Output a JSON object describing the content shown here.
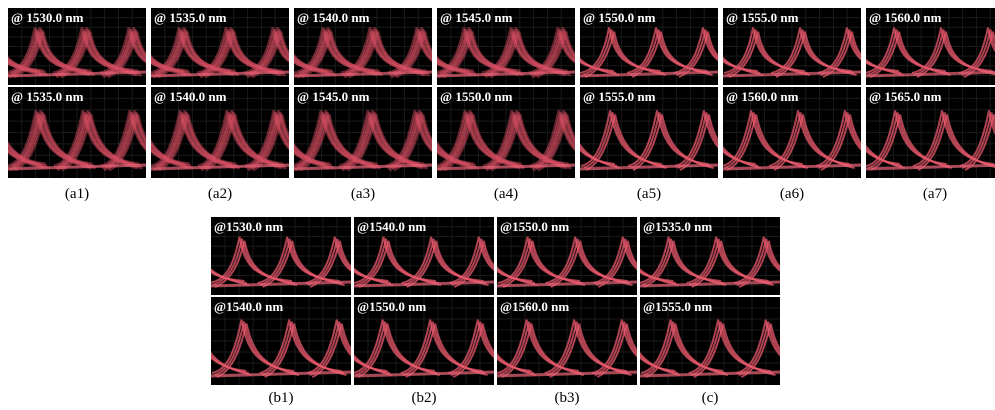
{
  "top_row": [
    {
      "upper": "@ 1530.0 nm",
      "lower": "@ 1535.0 nm",
      "caption": "(a1)"
    },
    {
      "upper": "@ 1535.0 nm",
      "lower": "@ 1540.0 nm",
      "caption": "(a2)"
    },
    {
      "upper": "@ 1540.0 nm",
      "lower": "@ 1545.0 nm",
      "caption": "(a3)"
    },
    {
      "upper": "@ 1545.0 nm",
      "lower": "@ 1550.0 nm",
      "caption": "(a4)"
    },
    {
      "upper": "@ 1550.0 nm",
      "lower": "@ 1555.0 nm",
      "caption": "(a5)"
    },
    {
      "upper": "@ 1555.0 nm",
      "lower": "@ 1560.0 nm",
      "caption": "(a6)"
    },
    {
      "upper": "@ 1560.0 nm",
      "lower": "@ 1565.0 nm",
      "caption": "(a7)"
    }
  ],
  "bottom_row": [
    {
      "upper": "@1530.0 nm",
      "lower": "@1540.0 nm",
      "caption": "(b1)"
    },
    {
      "upper": "@1540.0 nm",
      "lower": "@1550.0 nm",
      "caption": "(b2)"
    },
    {
      "upper": "@1550.0 nm",
      "lower": "@1560.0 nm",
      "caption": "(b3)"
    },
    {
      "upper": "@1535.0 nm",
      "lower": "@1555.0 nm",
      "caption": "(c)"
    }
  ]
}
